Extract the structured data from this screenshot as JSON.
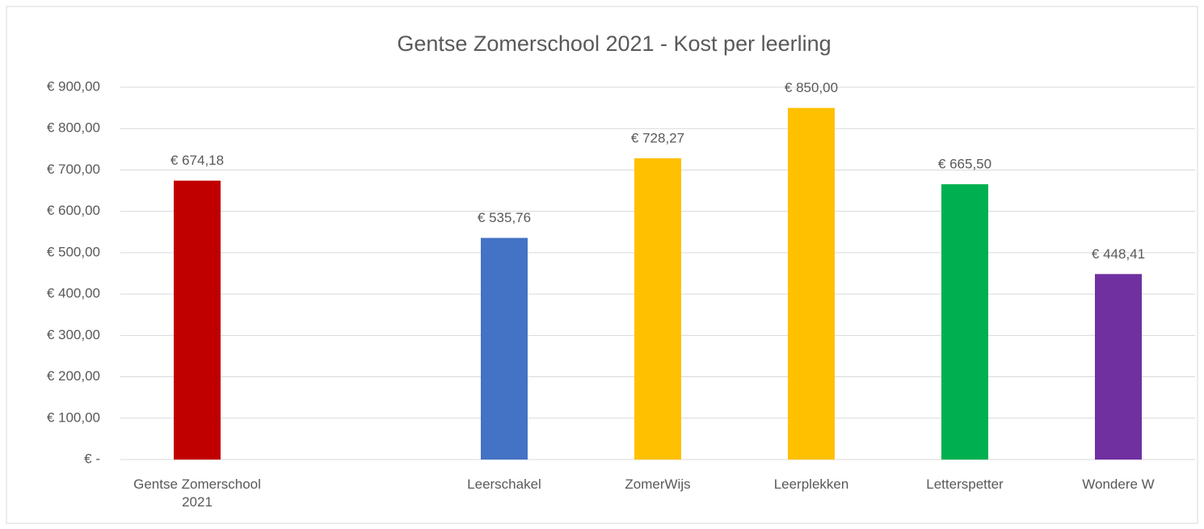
{
  "chart_data": {
    "type": "bar",
    "title": "Gentse Zomerschool 2021 - Kost per leerling",
    "categories": [
      "Gentse Zomerschool 2021",
      null,
      "Leerschakel",
      "ZomerWijs",
      "Leerplekken",
      "Letterspetter",
      "Wondere W"
    ],
    "values": [
      674.18,
      null,
      535.76,
      728.27,
      850,
      665.5,
      448.41
    ],
    "value_labels": [
      "€ 674,18",
      null,
      "€ 535,76",
      "€ 728,27",
      "€ 850,00",
      "€ 665,50",
      "€ 448,41"
    ],
    "colors": [
      "#c00000",
      null,
      "#4472c4",
      "#ffc000",
      "#ffc000",
      "#00b050",
      "#7030a0"
    ],
    "ylim": [
      0,
      900
    ],
    "yticks": [
      {
        "value": 0,
        "label": "€ -"
      },
      {
        "value": 100,
        "label": "€ 100,00"
      },
      {
        "value": 200,
        "label": "€ 200,00"
      },
      {
        "value": 300,
        "label": "€ 300,00"
      },
      {
        "value": 400,
        "label": "€ 400,00"
      },
      {
        "value": 500,
        "label": "€ 500,00"
      },
      {
        "value": 600,
        "label": "€ 600,00"
      },
      {
        "value": 700,
        "label": "€ 700,00"
      },
      {
        "value": 800,
        "label": "€ 800,00"
      },
      {
        "value": 900,
        "label": "€ 900,00"
      }
    ],
    "grid": true
  }
}
